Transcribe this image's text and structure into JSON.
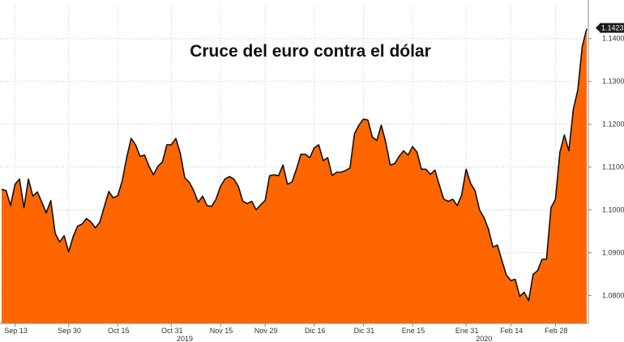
{
  "chart_data": {
    "type": "area",
    "title": "Cruce del euro contra el dólar",
    "xlabel": "",
    "ylabel": "",
    "ylim": [
      1.0735,
      1.1475
    ],
    "grid": true,
    "y_ticks": [
      1.08,
      1.09,
      1.1,
      1.11,
      1.12,
      1.13,
      1.14
    ],
    "y_tick_labels": [
      "1.0800",
      "1.0900",
      "1.1000",
      "1.1100",
      "1.1200",
      "1.1300",
      "1.1400"
    ],
    "last_value": 1.1423,
    "last_value_label": "1.1423",
    "x_tick_labels": [
      {
        "label": "Sep 13",
        "index": 3
      },
      {
        "label": "Sep 30",
        "index": 15
      },
      {
        "label": "Oct 15",
        "index": 26
      },
      {
        "label": "Oct 31",
        "index": 38
      },
      {
        "label": "Nov 15",
        "index": 49
      },
      {
        "label": "Nov 29",
        "index": 59
      },
      {
        "label": "Dic 16",
        "index": 70
      },
      {
        "label": "Dic 31",
        "index": 81
      },
      {
        "label": "Ene 15",
        "index": 92
      },
      {
        "label": "Ene 31",
        "index": 104
      },
      {
        "label": "Feb 14",
        "index": 114
      },
      {
        "label": "Feb 28",
        "index": 124
      }
    ],
    "year_labels": [
      {
        "label": "2019",
        "index": 41
      },
      {
        "label": "2020",
        "index": 108
      }
    ],
    "series": [
      {
        "values": [
          1.1048,
          1.1045,
          1.101,
          1.106,
          1.1072,
          1.1005,
          1.1072,
          1.1032,
          1.1042,
          1.1018,
          1.0993,
          1.1022,
          1.0945,
          1.0925,
          1.094,
          1.0902,
          1.0937,
          1.0962,
          1.0967,
          1.098,
          1.0972,
          1.0958,
          1.0972,
          1.1008,
          1.1043,
          1.1028,
          1.1033,
          1.1068,
          1.1122,
          1.1167,
          1.1152,
          1.1125,
          1.1128,
          1.1102,
          1.1082,
          1.1102,
          1.1112,
          1.1152,
          1.1152,
          1.1167,
          1.1132,
          1.1075,
          1.1065,
          1.1045,
          1.1018,
          1.1032,
          1.101,
          1.1008,
          1.1025,
          1.1055,
          1.1072,
          1.1078,
          1.1072,
          1.1055,
          1.102,
          1.1015,
          1.102,
          1.1,
          1.1012,
          1.1022,
          1.108,
          1.1082,
          1.108,
          1.1105,
          1.106,
          1.1065,
          1.1095,
          1.113,
          1.113,
          1.1122,
          1.1145,
          1.1152,
          1.1115,
          1.1122,
          1.108,
          1.1088,
          1.1088,
          1.1092,
          1.1098,
          1.1178,
          1.1198,
          1.1212,
          1.121,
          1.117,
          1.1162,
          1.1198,
          1.1158,
          1.1105,
          1.1108,
          1.1125,
          1.1138,
          1.1128,
          1.1148,
          1.1135,
          1.1095,
          1.1095,
          1.1083,
          1.1093,
          1.1058,
          1.1025,
          1.102,
          1.1025,
          1.101,
          1.1035,
          1.1095,
          1.1062,
          1.1045,
          1.1,
          1.0982,
          1.0955,
          1.0913,
          1.0918,
          1.0882,
          1.0848,
          1.0835,
          1.0838,
          1.0798,
          1.0808,
          1.0788,
          1.085,
          1.0858,
          1.0885,
          1.0885,
          1.1005,
          1.1025,
          1.1135,
          1.1175,
          1.1138,
          1.1235,
          1.128,
          1.1382,
          1.1423
        ]
      }
    ]
  },
  "colors": {
    "area_fill": "#ff6600",
    "line": "#111111",
    "grid": "#c8c8c8",
    "axis": "#888888",
    "last_label_bg": "#1a1a1a"
  }
}
